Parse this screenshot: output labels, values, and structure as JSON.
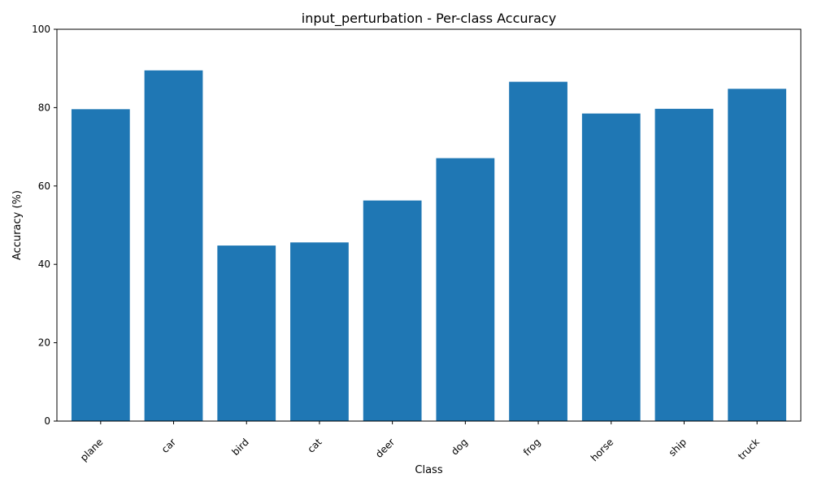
{
  "chart_data": {
    "type": "bar",
    "title": "input_perturbation - Per-class Accuracy",
    "xlabel": "Class",
    "ylabel": "Accuracy (%)",
    "categories": [
      "plane",
      "car",
      "bird",
      "cat",
      "deer",
      "dog",
      "frog",
      "horse",
      "ship",
      "truck"
    ],
    "values": [
      79.6,
      89.5,
      44.8,
      45.6,
      56.3,
      67.1,
      86.6,
      78.5,
      79.7,
      84.8
    ],
    "ylim": [
      0,
      100
    ],
    "yticks": [
      0,
      20,
      40,
      60,
      80,
      100
    ],
    "bar_color": "#1f77b4",
    "grid": false,
    "legend": "none",
    "xtick_rotation": 45
  }
}
